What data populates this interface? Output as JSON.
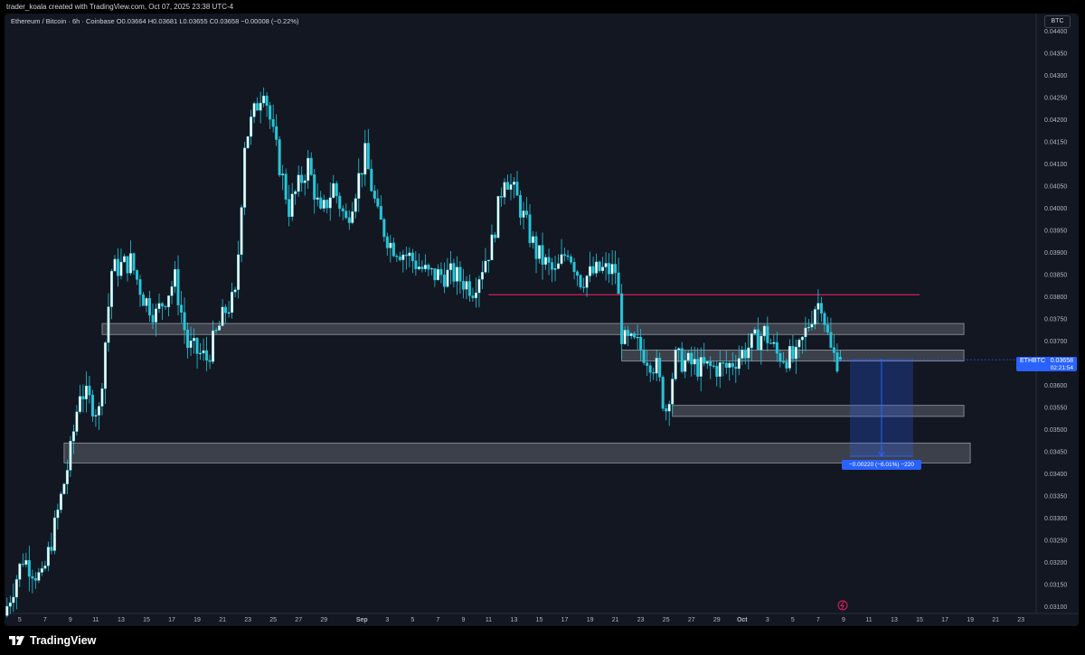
{
  "header": {
    "credit": "trader_koala created with TradingView.com, Oct 07, 2025 23:38 UTC-4"
  },
  "legend": {
    "text": "Ethereum / Bitcoin · 6h · Coinbase  O0.03664  H0.03681  L0.03655  C0.03658  −0.00008 (−0.22%)"
  },
  "currency_button": "BTC",
  "price_label": {
    "symbol": "ETHBTC",
    "value": "0.03658",
    "countdown": "02:21:54"
  },
  "measure_label": "−0.00220 (−6.01%) −220",
  "footer": {
    "logo_text": "TradingView"
  },
  "colors": {
    "background": "#131722",
    "candle": "#ffffff",
    "candle_outline": "#26c6da",
    "resistance_line": "#e91e63",
    "zone": "#9598a1",
    "measure": "#2962ff"
  },
  "chart_data": {
    "type": "candlestick",
    "symbol": "Ethereum / Bitcoin",
    "interval": "6h",
    "exchange": "Coinbase",
    "y_ticks": [
      "0.04400",
      "0.04350",
      "0.04300",
      "0.04250",
      "0.04200",
      "0.04150",
      "0.04100",
      "0.04050",
      "0.04000",
      "0.03950",
      "0.03900",
      "0.03850",
      "0.03800",
      "0.03750",
      "0.03700",
      "0.03650",
      "0.03600",
      "0.03550",
      "0.03500",
      "0.03450",
      "0.03400",
      "0.03350",
      "0.03300",
      "0.03250",
      "0.03200",
      "0.03150",
      "0.03100"
    ],
    "x_ticks": [
      "5",
      "7",
      "9",
      "11",
      "13",
      "15",
      "17",
      "19",
      "21",
      "23",
      "25",
      "27",
      "29",
      "Sep",
      "3",
      "5",
      "7",
      "9",
      "11",
      "13",
      "15",
      "17",
      "19",
      "21",
      "23",
      "25",
      "27",
      "29",
      "Oct",
      "3",
      "5",
      "7",
      "9",
      "11",
      "13",
      "15",
      "17",
      "19",
      "21",
      "23"
    ],
    "x_tick_days": [
      5,
      7,
      9,
      11,
      13,
      15,
      17,
      19,
      21,
      23,
      25,
      27,
      29,
      32,
      34,
      36,
      38,
      40,
      42,
      44,
      46,
      48,
      50,
      52,
      54,
      56,
      58,
      60,
      62,
      64,
      66,
      68,
      70,
      72,
      74,
      76,
      78,
      80,
      82,
      84
    ],
    "anchors": [
      [
        4,
        0.0308
      ],
      [
        5.5,
        0.0321
      ],
      [
        7,
        0.0316
      ],
      [
        8,
        0.0328
      ],
      [
        9.2,
        0.0344
      ],
      [
        10,
        0.0359
      ],
      [
        11.5,
        0.0354
      ],
      [
        12.5,
        0.0386
      ],
      [
        14,
        0.0388
      ],
      [
        15,
        0.038
      ],
      [
        16,
        0.0376
      ],
      [
        17.5,
        0.0384
      ],
      [
        18.5,
        0.0369
      ],
      [
        20,
        0.0366
      ],
      [
        21.5,
        0.0377
      ],
      [
        22.3,
        0.038
      ],
      [
        23,
        0.0415
      ],
      [
        24.5,
        0.0428
      ],
      [
        25.2,
        0.0417
      ],
      [
        26.5,
        0.04
      ],
      [
        28,
        0.041
      ],
      [
        29,
        0.0398
      ],
      [
        30,
        0.0405
      ],
      [
        31,
        0.0397
      ],
      [
        32.5,
        0.0412
      ],
      [
        33.5,
        0.0398
      ],
      [
        34.5,
        0.0392
      ],
      [
        36,
        0.0389
      ],
      [
        37.5,
        0.0385
      ],
      [
        39.5,
        0.0385
      ],
      [
        41,
        0.0382
      ],
      [
        42.5,
        0.0392
      ],
      [
        43.5,
        0.0408
      ],
      [
        44.5,
        0.0402
      ],
      [
        46,
        0.039
      ],
      [
        47.5,
        0.0385
      ],
      [
        48.5,
        0.0391
      ],
      [
        49.5,
        0.0384
      ],
      [
        51,
        0.0386
      ],
      [
        52.3,
        0.0386
      ],
      [
        52.8,
        0.037
      ],
      [
        54,
        0.0369
      ],
      [
        55.5,
        0.0364
      ],
      [
        56.2,
        0.0354
      ],
      [
        57,
        0.0366
      ],
      [
        59,
        0.0364
      ],
      [
        61,
        0.0364
      ],
      [
        62.5,
        0.0368
      ],
      [
        64,
        0.0372
      ],
      [
        65,
        0.0367
      ],
      [
        66.5,
        0.0366
      ],
      [
        68,
        0.0378
      ],
      [
        68.5,
        0.0379
      ],
      [
        69.2,
        0.0368
      ],
      [
        69.7,
        0.03658
      ]
    ],
    "seed": 7,
    "last_candle": {
      "open": 0.03664,
      "high": 0.03681,
      "low": 0.03655,
      "close": 0.03658
    },
    "resistance_line": {
      "price": 0.03805,
      "from_day": 42,
      "to_day": 76
    },
    "zones": [
      {
        "top": 0.0374,
        "bottom": 0.03715,
        "from_day": 11.5,
        "to_day": 79.5
      },
      {
        "top": 0.0368,
        "bottom": 0.03655,
        "from_day": 52.5,
        "to_day": 79.5
      },
      {
        "top": 0.03555,
        "bottom": 0.0353,
        "from_day": 56.5,
        "to_day": 79.5
      },
      {
        "top": 0.0347,
        "bottom": 0.03425,
        "from_day": 8.5,
        "to_day": 80
      }
    ],
    "measure": {
      "from_price": 0.0366,
      "to_price": 0.0344,
      "from_day": 70.5,
      "to_day": 75.5,
      "change": -0.0022,
      "change_pct": -6.01,
      "ticks": -220
    },
    "y_range": [
      0.03085,
      0.0444
    ],
    "x_range": [
      3.8,
      85.2
    ]
  }
}
